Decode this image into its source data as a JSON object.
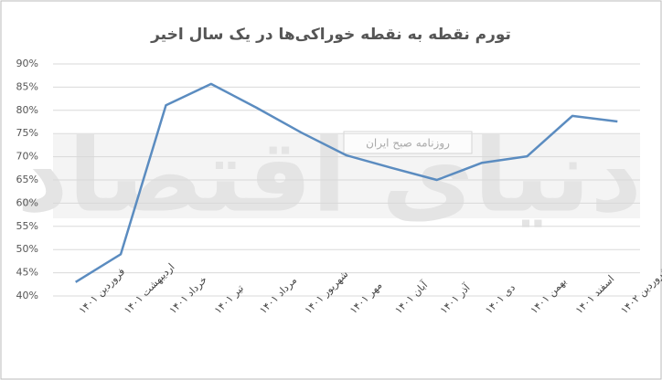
{
  "chart_data": {
    "type": "line",
    "title": "تورم نقطه به نقطه خوراکی‌ها در یک سال اخیر",
    "watermark": "دنیای اقتصاد",
    "stamp": "روزنامه صبح ایران",
    "categories": [
      "فروردین ۱۴۰۱",
      "اردیبهشت ۱۴۰۱",
      "خرداد ۱۴۰۱",
      "تیر ۱۴۰۱",
      "مرداد ۱۴۰۱",
      "شهریور ۱۴۰۱",
      "مهر ۱۴۰۱",
      "آبان ۱۴۰۱",
      "آذر ۱۴۰۱",
      "دی ۱۴۰۱",
      "بهمن ۱۴۰۱",
      "اسفند ۱۴۰۱",
      "فروردین ۱۴۰۲"
    ],
    "values": [
      43,
      49,
      81.1,
      85.7,
      80.6,
      75.2,
      70.3,
      67.6,
      65,
      68.7,
      70.1,
      78.8,
      77.6
    ],
    "color": "#5b8cc0",
    "ylim": [
      40,
      90
    ],
    "yticks": [
      {
        "value": 40,
        "label": "40%"
      },
      {
        "value": 45,
        "label": "45%"
      },
      {
        "value": 50,
        "label": "50%"
      },
      {
        "value": 55,
        "label": "55%"
      },
      {
        "value": 60,
        "label": "60%"
      },
      {
        "value": 65,
        "label": "65%"
      },
      {
        "value": 70,
        "label": "70%"
      },
      {
        "value": 75,
        "label": "75%"
      },
      {
        "value": 80,
        "label": "80%"
      },
      {
        "value": 85,
        "label": "85%"
      },
      {
        "value": 90,
        "label": "90%"
      }
    ],
    "grid": true
  }
}
